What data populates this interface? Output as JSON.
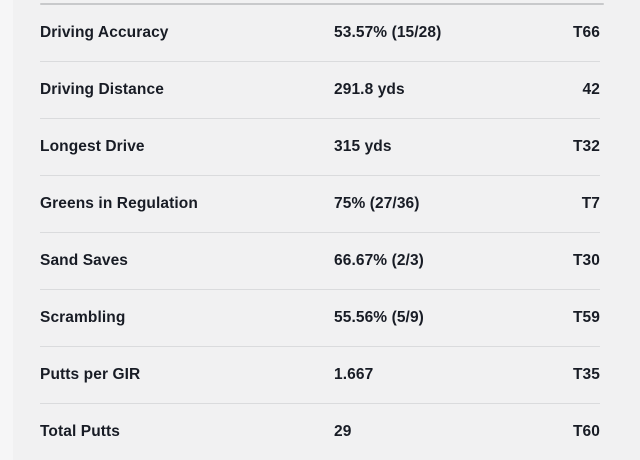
{
  "colors": {
    "background": "#f1f1f2",
    "left_gutter": "#f6f6f7",
    "row_divider": "#dadbdd",
    "edge_divider": "#c8c9cb",
    "text": "#181c25"
  },
  "table": {
    "rows": [
      {
        "label": "Driving Accuracy",
        "value": "53.57% (15/28)",
        "rank": "T66"
      },
      {
        "label": "Driving Distance",
        "value": "291.8 yds",
        "rank": "42"
      },
      {
        "label": "Longest Drive",
        "value": "315 yds",
        "rank": "T32"
      },
      {
        "label": "Greens in Regulation",
        "value": "75% (27/36)",
        "rank": "T7"
      },
      {
        "label": "Sand Saves",
        "value": "66.67% (2/3)",
        "rank": "T30"
      },
      {
        "label": "Scrambling",
        "value": "55.56% (5/9)",
        "rank": "T59"
      },
      {
        "label": "Putts per GIR",
        "value": "1.667",
        "rank": "T35"
      },
      {
        "label": "Total Putts",
        "value": "29",
        "rank": "T60"
      }
    ]
  }
}
